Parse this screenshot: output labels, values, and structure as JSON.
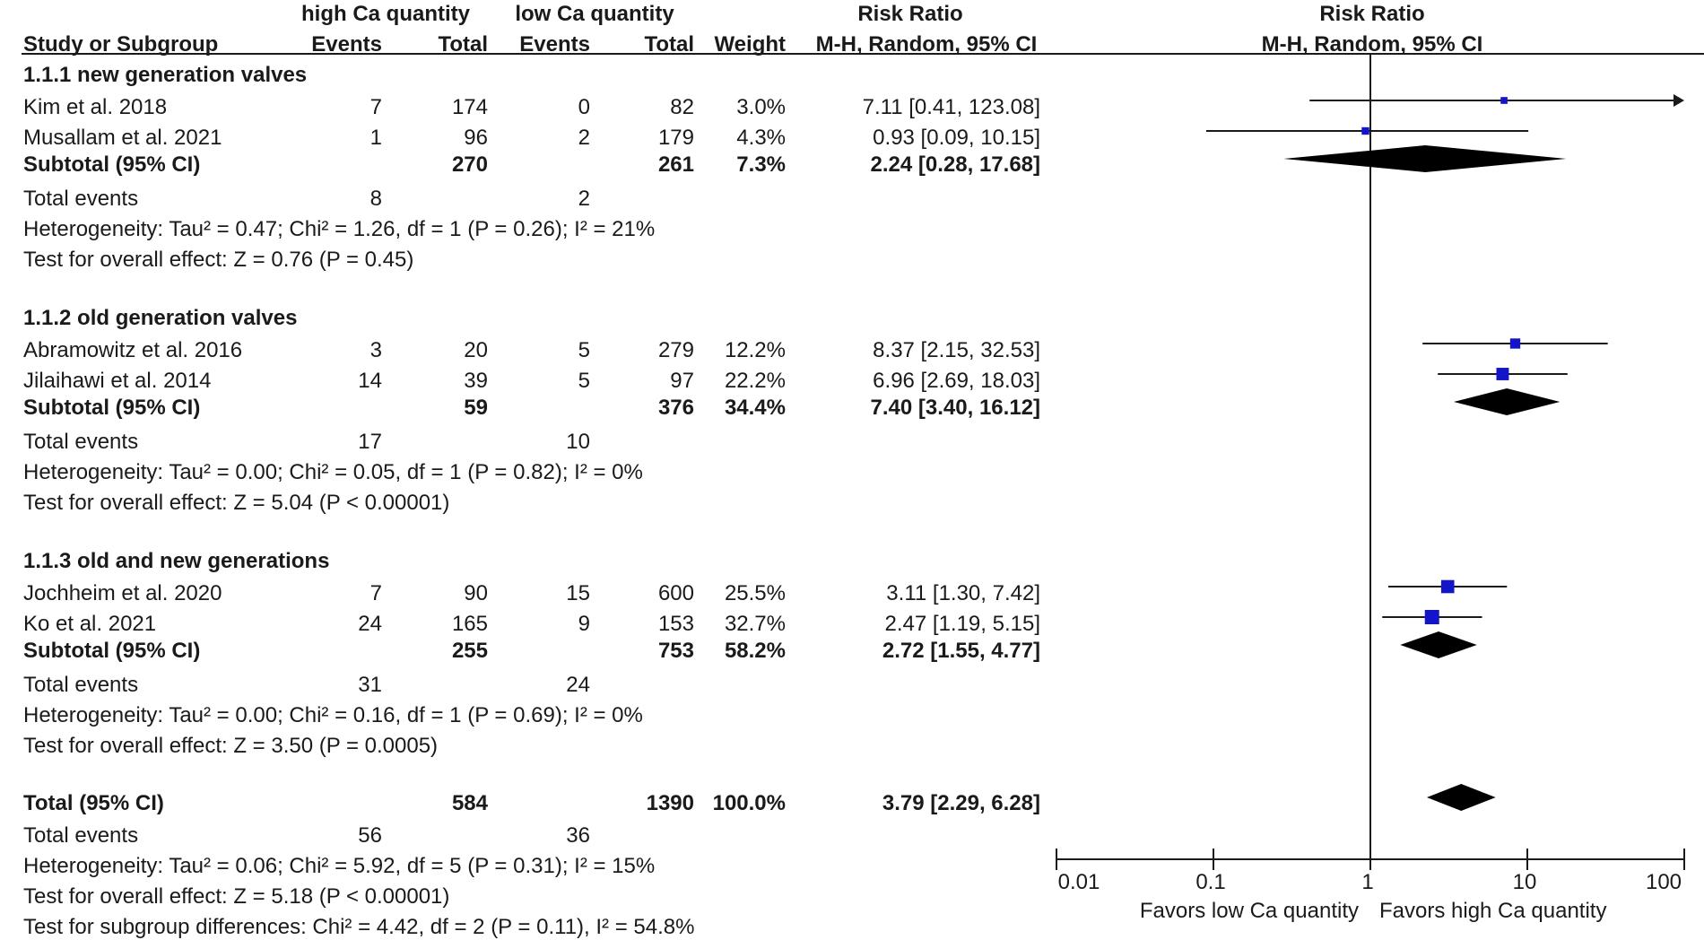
{
  "headers": {
    "group_high": "high Ca quantity",
    "group_low": "low Ca quantity",
    "risk_ratio": "Risk Ratio",
    "risk_ratio_plot": "Risk Ratio",
    "study": "Study or Subgroup",
    "events_high": "Events",
    "total_high": "Total",
    "events_low": "Events",
    "total_low": "Total",
    "weight": "Weight",
    "method": "M-H, Random, 95% CI",
    "method_plot": "M-H, Random, 95% CI"
  },
  "subgroups": [
    {
      "title": "1.1.1 new generation valves",
      "studies": [
        {
          "name": "Kim et al. 2018",
          "ev_h": "7",
          "tot_h": "174",
          "ev_l": "0",
          "tot_l": "82",
          "weight": "3.0%",
          "ci_text": "7.11 [0.41, 123.08]"
        },
        {
          "name": "Musallam et al. 2021",
          "ev_h": "1",
          "tot_h": "96",
          "ev_l": "2",
          "tot_l": "179",
          "weight": "4.3%",
          "ci_text": "0.93 [0.09, 10.15]"
        }
      ],
      "subtotal": {
        "label": "Subtotal (95% CI)",
        "tot_h": "270",
        "tot_l": "261",
        "weight": "7.3%",
        "ci_text": "2.24 [0.28, 17.68]"
      },
      "events": {
        "label": "Total events",
        "h": "8",
        "l": "2"
      },
      "heterogeneity": "Heterogeneity: Tau² = 0.47; Chi² = 1.26, df = 1 (P = 0.26); I² = 21%",
      "overall": "Test for overall effect: Z = 0.76 (P = 0.45)"
    },
    {
      "title": "1.1.2 old generation valves",
      "studies": [
        {
          "name": "Abramowitz et al. 2016",
          "ev_h": "3",
          "tot_h": "20",
          "ev_l": "5",
          "tot_l": "279",
          "weight": "12.2%",
          "ci_text": "8.37 [2.15, 32.53]"
        },
        {
          "name": "Jilaihawi et al. 2014",
          "ev_h": "14",
          "tot_h": "39",
          "ev_l": "5",
          "tot_l": "97",
          "weight": "22.2%",
          "ci_text": "6.96 [2.69, 18.03]"
        }
      ],
      "subtotal": {
        "label": "Subtotal (95% CI)",
        "tot_h": "59",
        "tot_l": "376",
        "weight": "34.4%",
        "ci_text": "7.40 [3.40, 16.12]"
      },
      "events": {
        "label": "Total events",
        "h": "17",
        "l": "10"
      },
      "heterogeneity": "Heterogeneity: Tau² = 0.00; Chi² = 0.05, df = 1 (P = 0.82); I² = 0%",
      "overall": "Test for overall effect: Z = 5.04 (P < 0.00001)"
    },
    {
      "title": "1.1.3 old and new generations",
      "studies": [
        {
          "name": "Jochheim et al. 2020",
          "ev_h": "7",
          "tot_h": "90",
          "ev_l": "15",
          "tot_l": "600",
          "weight": "25.5%",
          "ci_text": "3.11 [1.30, 7.42]"
        },
        {
          "name": "Ko et al. 2021",
          "ev_h": "24",
          "tot_h": "165",
          "ev_l": "9",
          "tot_l": "153",
          "weight": "32.7%",
          "ci_text": "2.47 [1.19, 5.15]"
        }
      ],
      "subtotal": {
        "label": "Subtotal (95% CI)",
        "tot_h": "255",
        "tot_l": "753",
        "weight": "58.2%",
        "ci_text": "2.72 [1.55, 4.77]"
      },
      "events": {
        "label": "Total events",
        "h": "31",
        "l": "24"
      },
      "heterogeneity": "Heterogeneity: Tau² = 0.00; Chi² = 0.16, df = 1 (P = 0.69); I² = 0%",
      "overall": "Test for overall effect: Z = 3.50 (P = 0.0005)"
    }
  ],
  "total": {
    "label": "Total (95% CI)",
    "tot_h": "584",
    "tot_l": "1390",
    "weight": "100.0%",
    "ci_text": "3.79 [2.29, 6.28]",
    "events": {
      "label": "Total events",
      "h": "56",
      "l": "36"
    },
    "heterogeneity": "Heterogeneity: Tau² = 0.06; Chi² = 5.92, df = 5 (P = 0.31); I² = 15%",
    "overall": "Test for overall effect: Z = 5.18 (P < 0.00001)",
    "subgroup_diff": "Test for subgroup differences: Chi² = 4.42, df = 2 (P = 0.11), I² = 54.8%"
  },
  "axis": {
    "ticks": [
      "0.01",
      "0.1",
      "1",
      "10",
      "100"
    ],
    "favors_left": "Favors low Ca quantity",
    "favors_right": "Favors high Ca quantity"
  },
  "colors": {
    "marker": "#1414c8",
    "diamond": "#000000",
    "line": "#1a1a1a"
  },
  "chart_data": {
    "type": "forest",
    "scale": "log",
    "xlim": [
      0.01,
      100
    ],
    "null_value": 1,
    "studies": [
      {
        "name": "Kim et al. 2018",
        "rr": 7.11,
        "lo": 0.41,
        "hi": 123.08,
        "weight": 3.0
      },
      {
        "name": "Musallam et al. 2021",
        "rr": 0.93,
        "lo": 0.09,
        "hi": 10.15,
        "weight": 4.3
      },
      {
        "name": "Abramowitz et al. 2016",
        "rr": 8.37,
        "lo": 2.15,
        "hi": 32.53,
        "weight": 12.2
      },
      {
        "name": "Jilaihawi et al. 2014",
        "rr": 6.96,
        "lo": 2.69,
        "hi": 18.03,
        "weight": 22.2
      },
      {
        "name": "Jochheim et al. 2020",
        "rr": 3.11,
        "lo": 1.3,
        "hi": 7.42,
        "weight": 25.5
      },
      {
        "name": "Ko et al. 2021",
        "rr": 2.47,
        "lo": 1.19,
        "hi": 5.15,
        "weight": 32.7
      }
    ],
    "subtotals": [
      {
        "name": "1.1.1 new generation valves",
        "rr": 2.24,
        "lo": 0.28,
        "hi": 17.68
      },
      {
        "name": "1.1.2 old generation valves",
        "rr": 7.4,
        "lo": 3.4,
        "hi": 16.12
      },
      {
        "name": "1.1.3 old and new generations",
        "rr": 2.72,
        "lo": 1.55,
        "hi": 4.77
      }
    ],
    "overall": {
      "name": "Total (95% CI)",
      "rr": 3.79,
      "lo": 2.29,
      "hi": 6.28
    }
  }
}
